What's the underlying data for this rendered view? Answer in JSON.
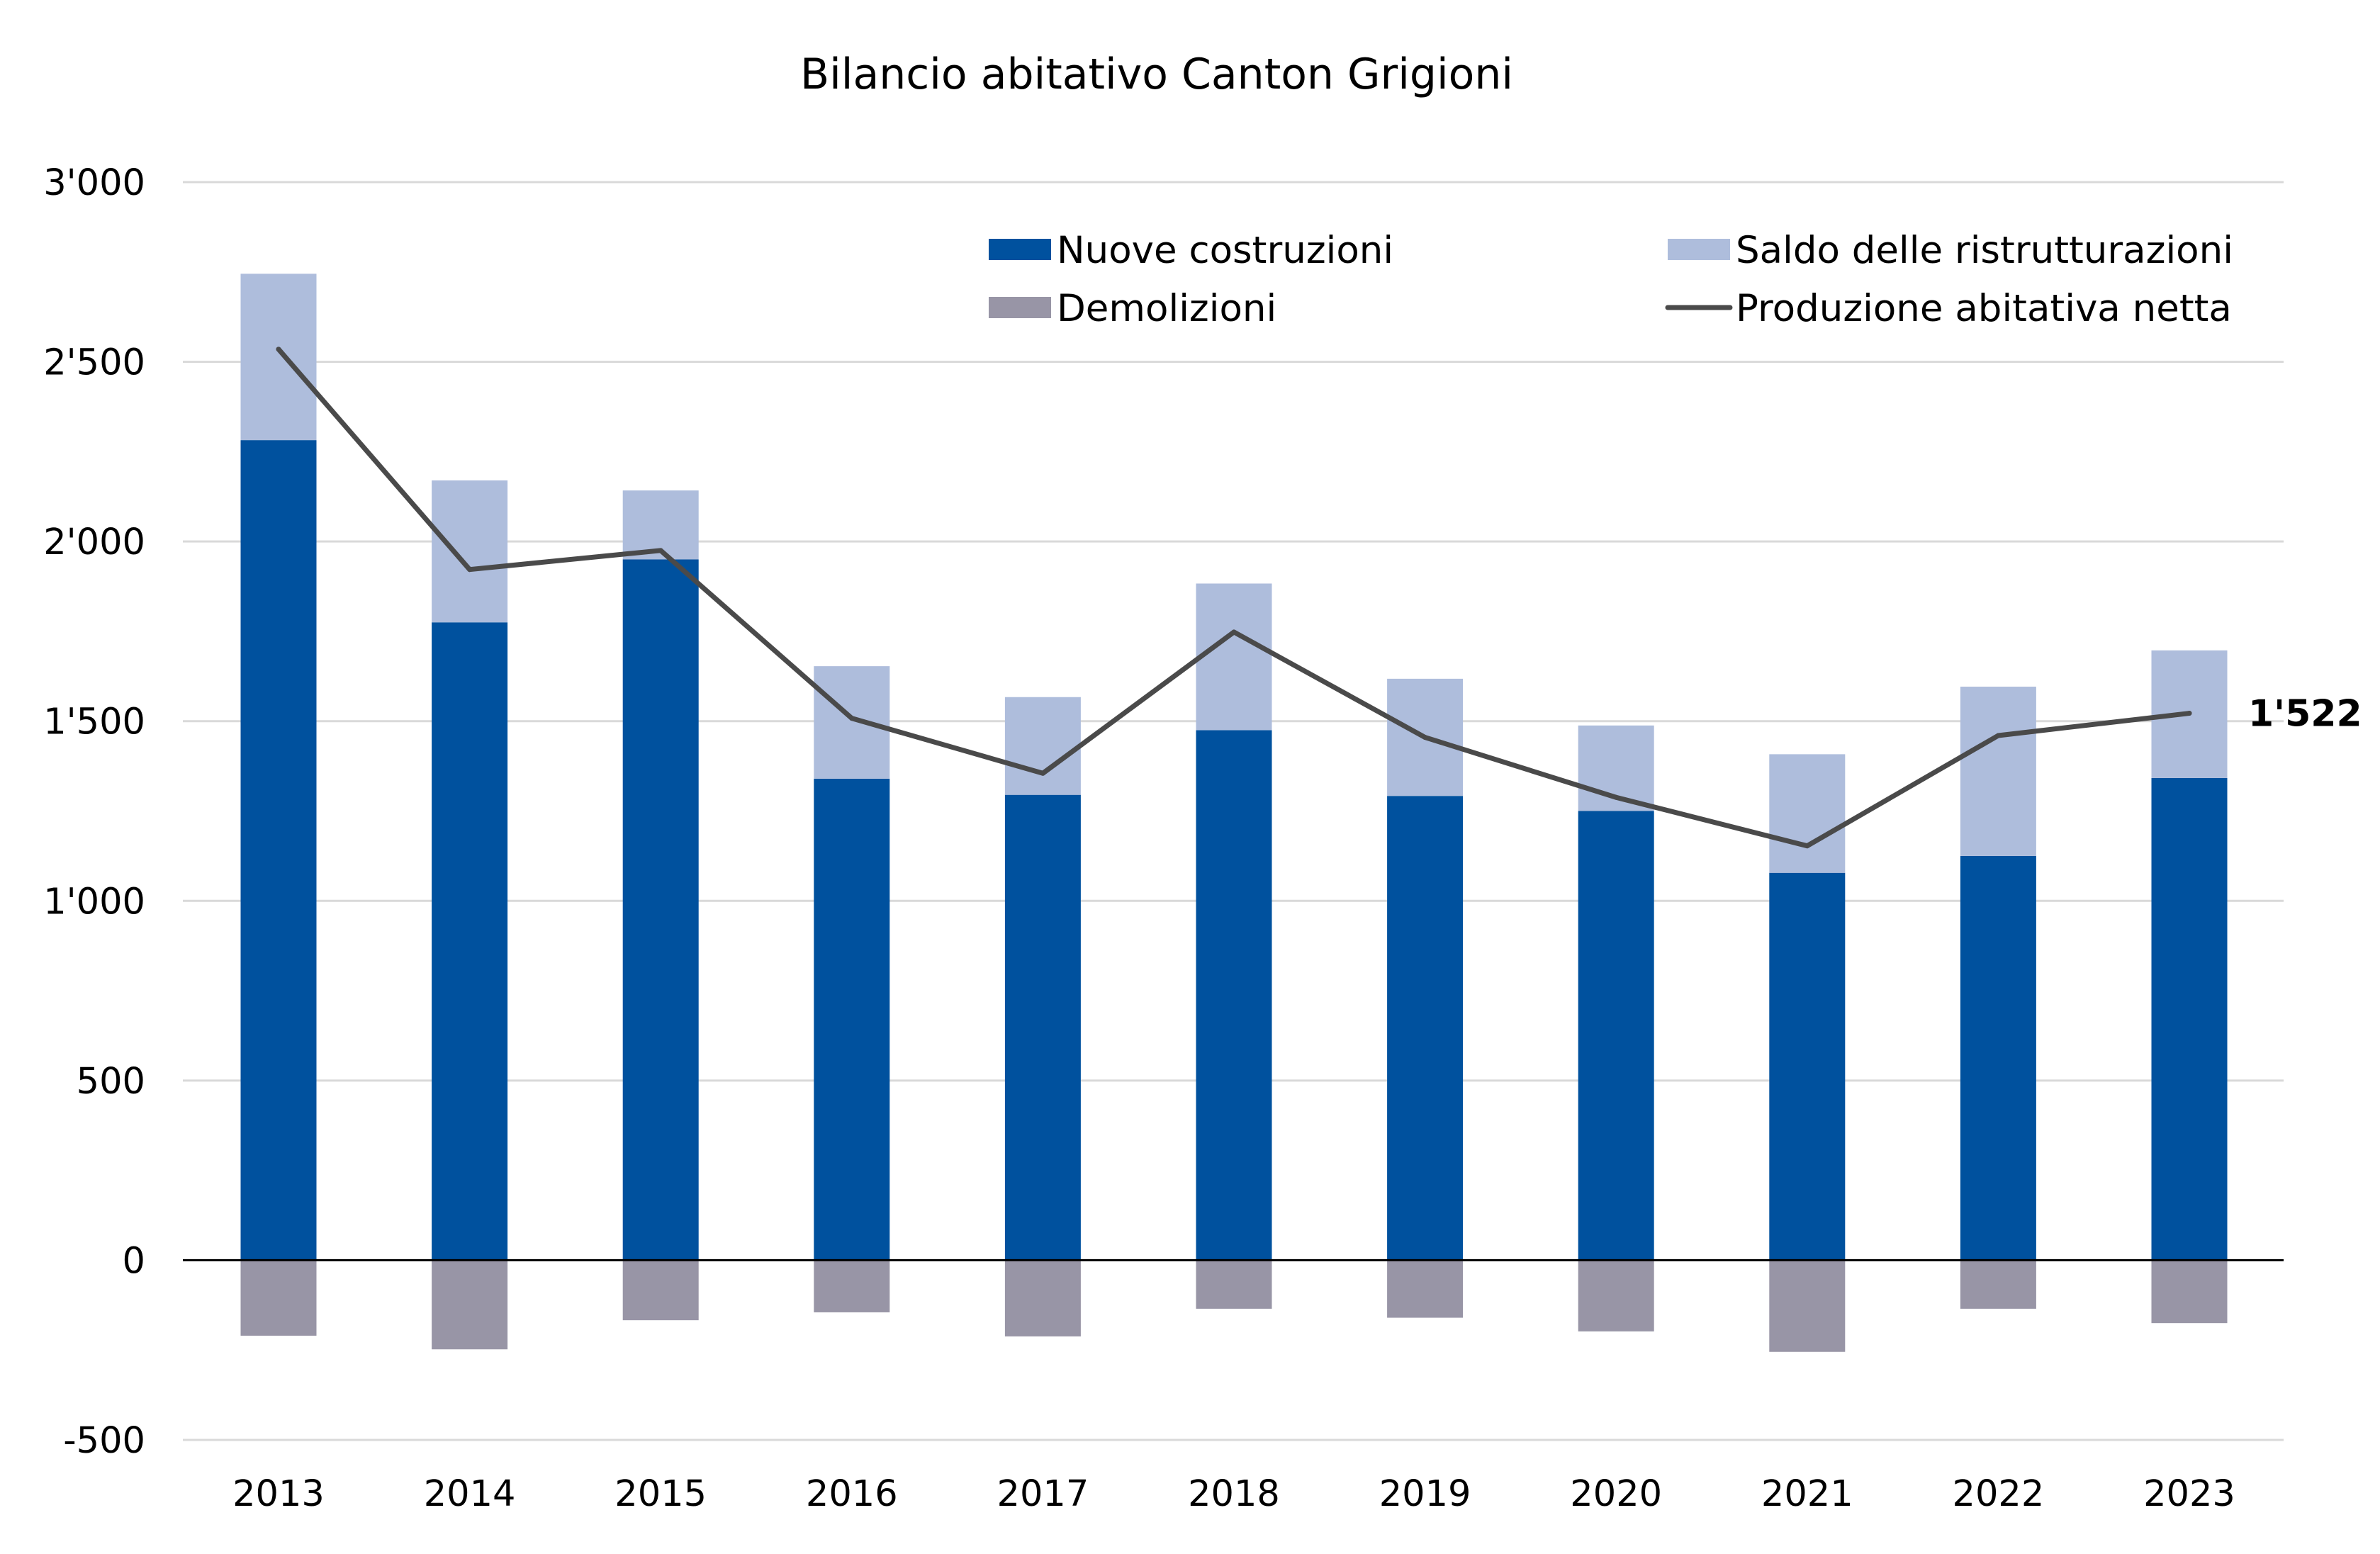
{
  "chart_data": {
    "type": "bar",
    "title": "Bilancio abitativo Canton Grigioni",
    "xlabel": "",
    "ylabel": "",
    "ylim": [
      -500,
      3000
    ],
    "yticks": [
      -500,
      0,
      500,
      1000,
      1500,
      2000,
      2500,
      3000
    ],
    "ytick_labels": [
      "-500",
      "0",
      "500",
      "1'000",
      "1'500",
      "2'000",
      "2'500",
      "3'000"
    ],
    "grid": true,
    "stacked": true,
    "legend_position": "top-right",
    "categories": [
      "2013",
      "2014",
      "2015",
      "2016",
      "2017",
      "2018",
      "2019",
      "2020",
      "2021",
      "2022",
      "2023"
    ],
    "series": [
      {
        "name": "Nuove costruzioni",
        "kind": "bar",
        "color": "#00519E",
        "values": [
          2282,
          1775,
          1950,
          1340,
          1295,
          1475,
          1292,
          1250,
          1078,
          1125,
          1342
        ]
      },
      {
        "name": "Saldo delle ristrutturazioni",
        "kind": "bar",
        "color": "#AEBDDC",
        "values": [
          463,
          395,
          192,
          313,
          272,
          408,
          326,
          238,
          330,
          471,
          355
        ]
      },
      {
        "name": "Demolizioni",
        "kind": "bar",
        "color": "#9895A6",
        "values": [
          -210,
          -248,
          -167,
          -145,
          -212,
          -135,
          -160,
          -198,
          -255,
          -135,
          -175
        ]
      },
      {
        "name": "Produzione abitativa netta",
        "kind": "line",
        "color": "#4A4A4A",
        "values": [
          2535,
          1922,
          1975,
          1508,
          1355,
          1748,
          1455,
          1288,
          1153,
          1460,
          1522
        ]
      }
    ],
    "annotations": [
      {
        "category": "2023",
        "series": "Produzione abitativa netta",
        "text": "1'522"
      }
    ]
  }
}
